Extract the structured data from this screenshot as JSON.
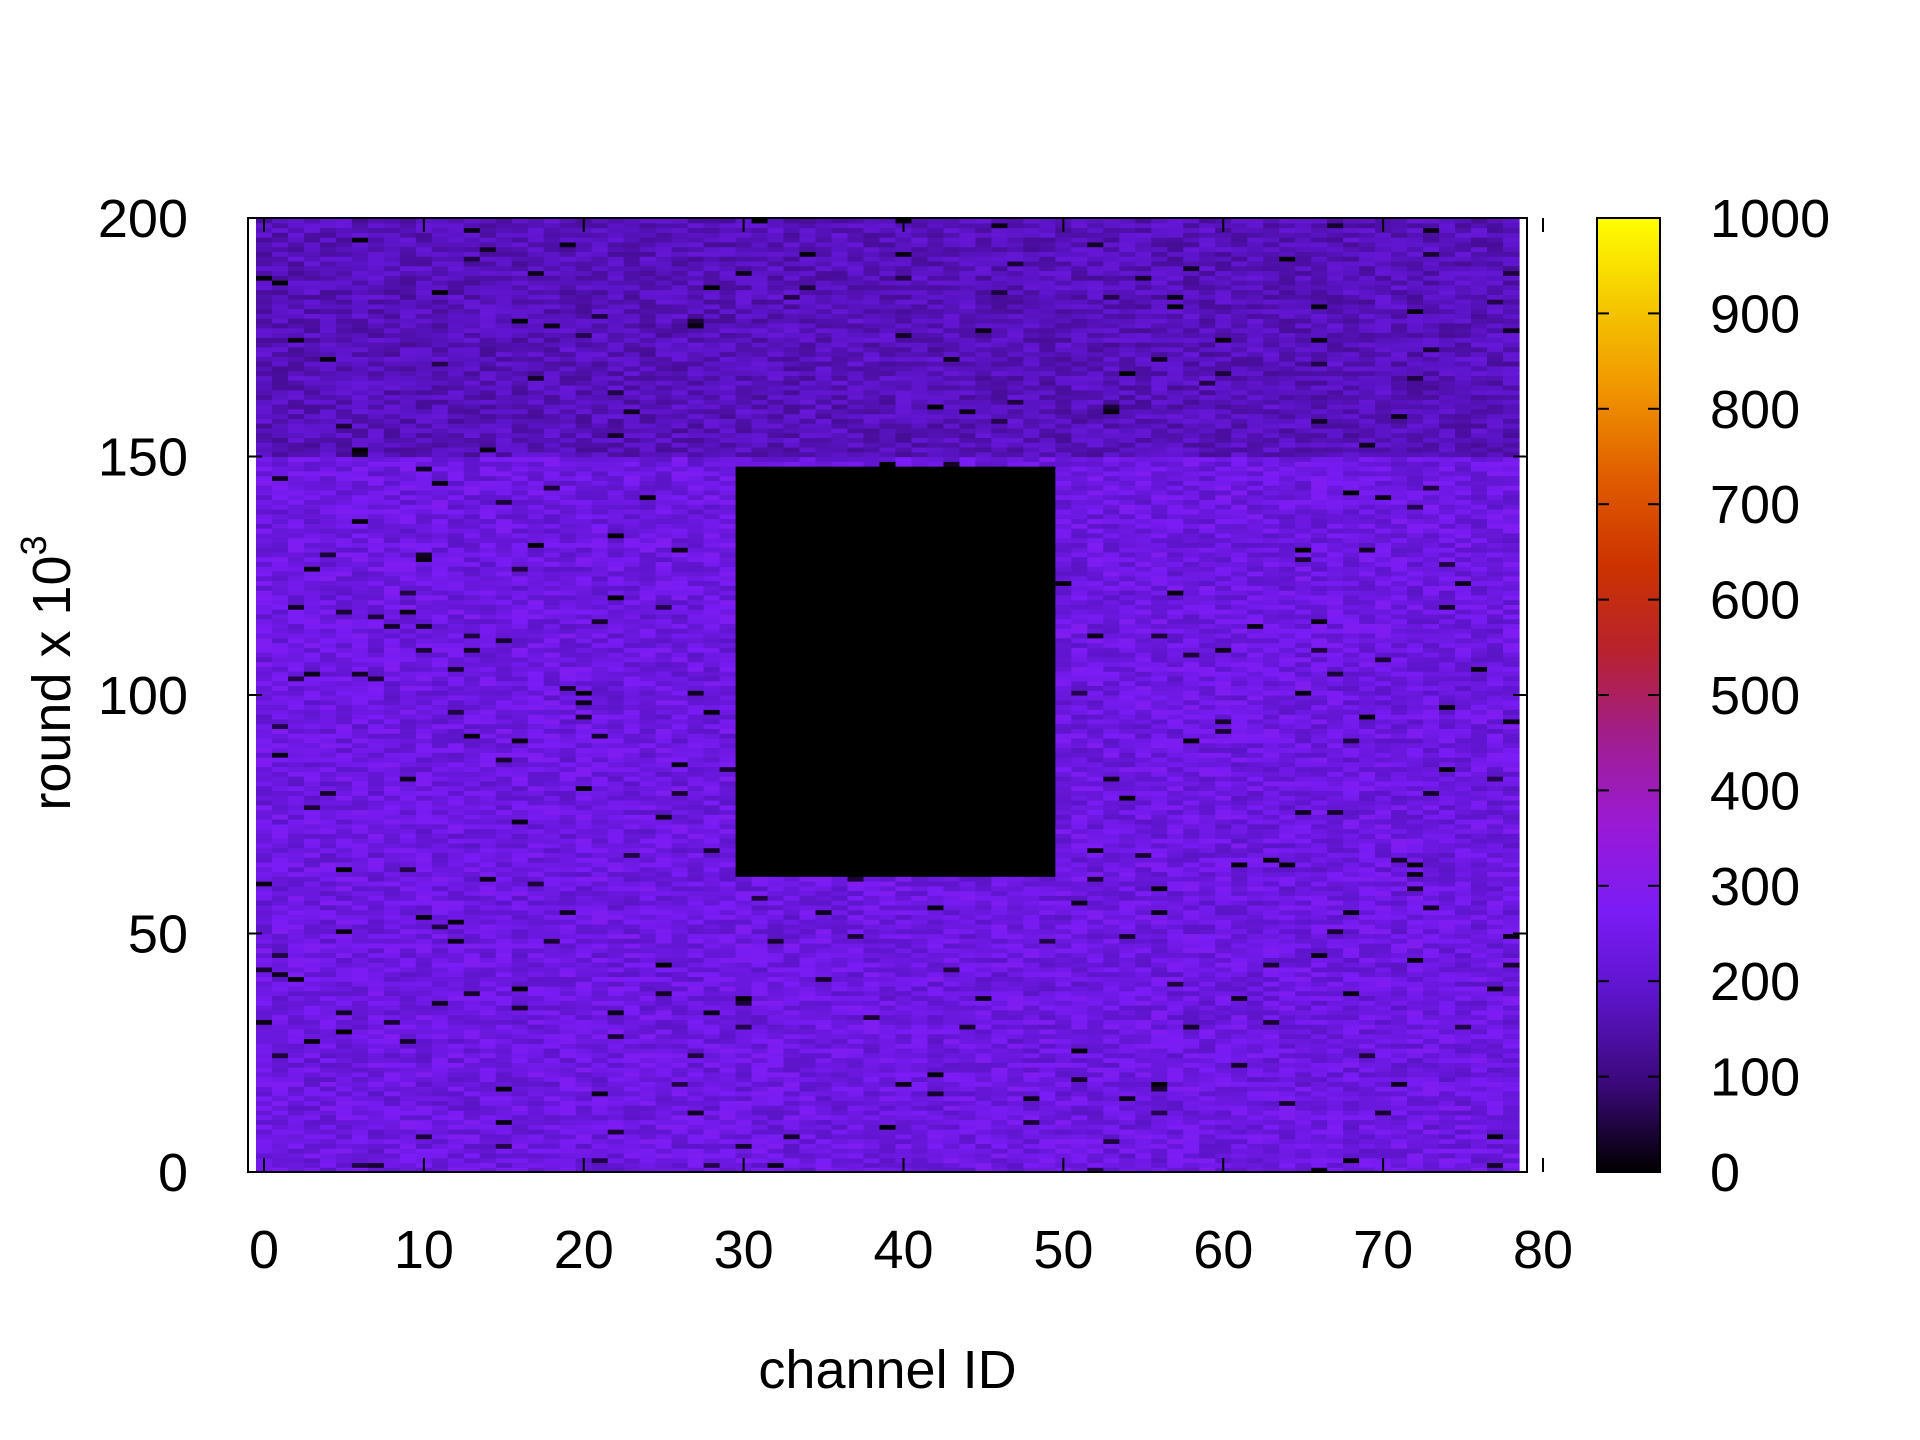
{
  "chart_data": {
    "type": "heatmap",
    "title": "",
    "xlabel": "channel ID",
    "ylabel": "round x 10",
    "ylabel_sup": "3",
    "xlim": [
      -1,
      79
    ],
    "ylim": [
      0,
      200
    ],
    "x_ticks": [
      0,
      10,
      20,
      30,
      40,
      50,
      60,
      70,
      80
    ],
    "y_ticks": [
      0,
      50,
      100,
      150,
      200
    ],
    "channels": 79,
    "rounds_x1000": 200,
    "colorbar": {
      "range": [
        0,
        1000
      ],
      "ticks": [
        0,
        100,
        200,
        300,
        400,
        500,
        600,
        700,
        800,
        900,
        1000
      ],
      "palette": [
        "#000000",
        "#3a0878",
        "#5c14c8",
        "#7a1cf5",
        "#9a1ad6",
        "#a01e8f",
        "#b8222e",
        "#cc3300",
        "#e05c00",
        "#f09400",
        "#f5c800",
        "#ffff00"
      ]
    },
    "regions": [
      {
        "rounds": [
          0,
          150
        ],
        "typical_value": 235,
        "spread": 55
      },
      {
        "rounds": [
          150,
          200
        ],
        "typical_value": 170,
        "spread": 45
      }
    ],
    "zero_block": {
      "channels": [
        30,
        49
      ],
      "rounds": [
        62,
        148
      ],
      "value": 0
    },
    "grid": false,
    "legend": "colorbar-right"
  }
}
